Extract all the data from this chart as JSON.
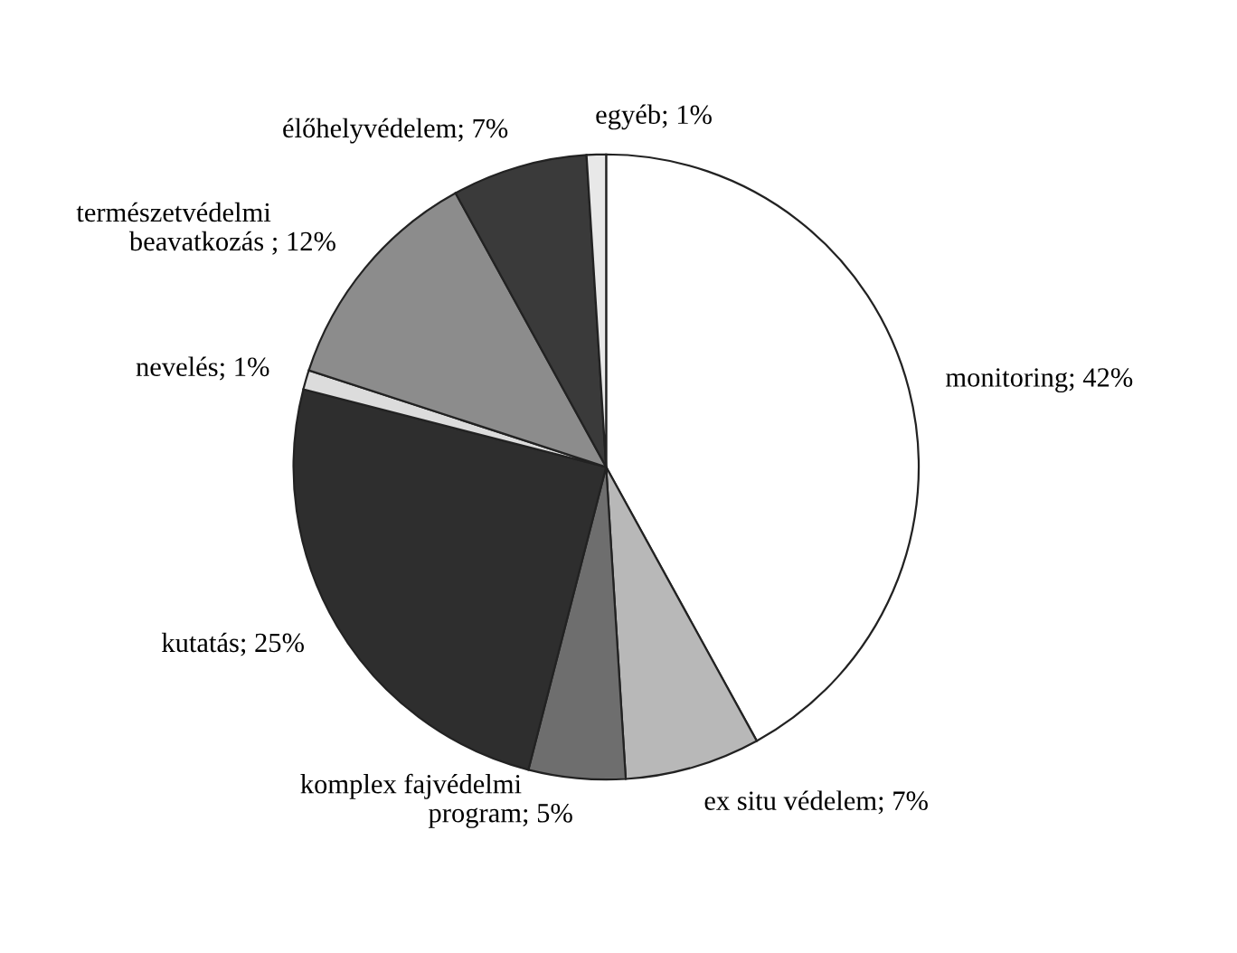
{
  "chart_data": {
    "type": "pie",
    "categories": [
      "monitoring",
      "ex situ védelem",
      "komplex fajvédelmi\nprogram",
      "kutatás",
      "nevelés",
      "természetvédelmi\nbeavatkozás ",
      "élőhelyvédelem",
      "egyéb"
    ],
    "values": [
      42,
      7,
      5,
      25,
      1,
      12,
      7,
      1
    ],
    "value_labels": [
      "; 42%",
      "; 7%",
      "; 5%",
      "; 25%",
      "; 1%",
      "; 12%",
      "; 7%",
      "; 1%"
    ],
    "colors": [
      "#ffffff",
      "#b8b8b8",
      "#6e6e6e",
      "#2e2e2e",
      "#dcdcdc",
      "#8c8c8c",
      "#3a3a3a",
      "#e8e8e8"
    ]
  }
}
